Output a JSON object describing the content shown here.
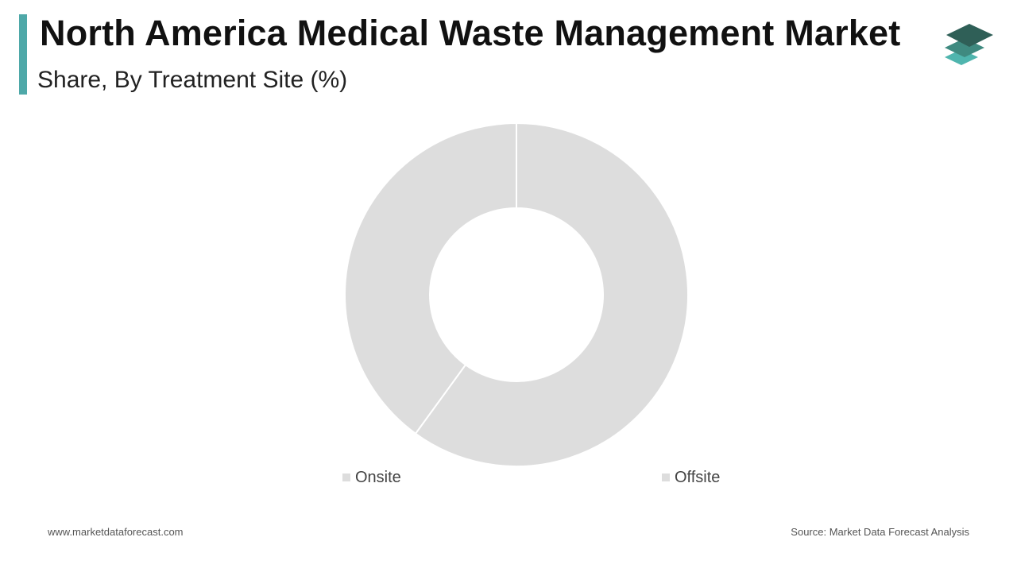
{
  "header": {
    "title": "North America Medical Waste Management Market",
    "subtitle": "Share, By Treatment Site (%)"
  },
  "footer": {
    "website": "www.marketdataforecast.com",
    "source": "Source: Market Data Forecast Analysis"
  },
  "colors": {
    "accent": "#4ea8a8",
    "slice": "#dddddd",
    "logo_top": "#2f5f57",
    "logo_mid": "#3f8a80",
    "logo_bottom": "#4fb5ae"
  },
  "logo_icon": "stacked-layers-icon",
  "chart_data": {
    "type": "pie",
    "donut": true,
    "categories": [
      "Onsite",
      "Offsite"
    ],
    "values": [
      40,
      60
    ],
    "legend_position": "bottom"
  }
}
